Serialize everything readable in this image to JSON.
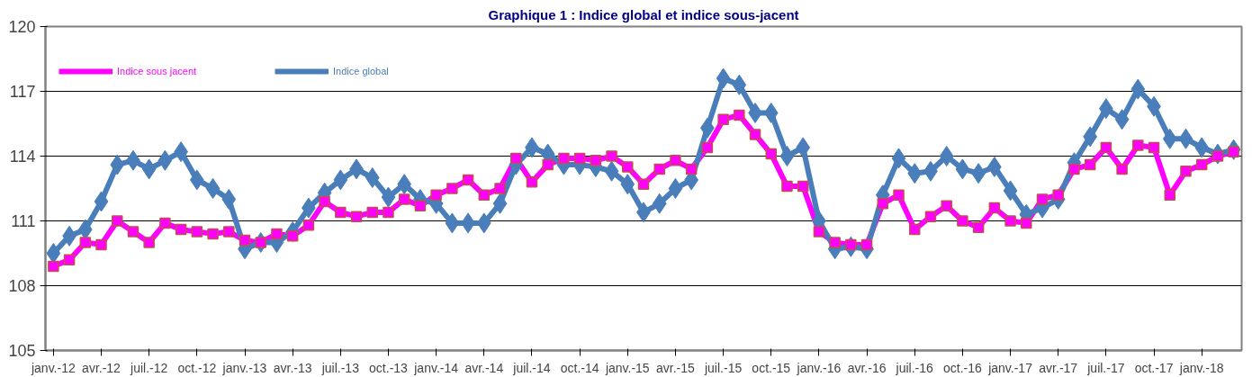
{
  "chart_data": {
    "type": "line",
    "title": "Graphique 1 : Indice global et indice sous-jacent",
    "categories": [
      "janv.-12",
      null,
      null,
      "avr.-12",
      null,
      null,
      "juil.-12",
      null,
      null,
      "oct.-12",
      null,
      null,
      "janv.-13",
      null,
      null,
      "avr.-13",
      null,
      null,
      "juil.-13",
      null,
      null,
      "oct.-13",
      null,
      null,
      "janv.-14",
      null,
      null,
      "avr.-14",
      null,
      null,
      "juil.-14",
      null,
      null,
      "oct.-14",
      null,
      null,
      "janv.-15",
      null,
      null,
      "avr.-15",
      null,
      null,
      "juil.-15",
      null,
      null,
      "oct.-15",
      null,
      null,
      "janv.-16",
      null,
      null,
      "avr.-16",
      null,
      null,
      "juil.-16",
      null,
      null,
      "oct.-16",
      null,
      null,
      "janv.-17",
      null,
      null,
      "avr.-17",
      null,
      null,
      "juil.-17",
      null,
      null,
      "oct.-17",
      null,
      null,
      "janv.-18",
      null,
      null
    ],
    "series": [
      {
        "name": "Indice sous jacent",
        "color": "#ff00ff",
        "marker": "square",
        "values": [
          108.9,
          109.2,
          110.0,
          109.9,
          111.0,
          110.5,
          110.0,
          110.9,
          110.6,
          110.5,
          110.4,
          110.5,
          110.1,
          110.0,
          110.4,
          110.3,
          110.8,
          111.9,
          111.4,
          111.2,
          111.4,
          111.4,
          112.0,
          111.7,
          112.2,
          112.5,
          112.9,
          112.2,
          112.5,
          113.9,
          112.8,
          113.6,
          113.9,
          113.9,
          113.8,
          114.0,
          113.5,
          112.7,
          113.4,
          113.8,
          113.4,
          114.4,
          115.7,
          115.9,
          115.0,
          114.1,
          112.6,
          112.6,
          110.5,
          110.0,
          109.9,
          109.9,
          111.8,
          112.2,
          110.6,
          111.2,
          111.7,
          111.0,
          110.7,
          111.6,
          111.0,
          110.9,
          112.0,
          112.2,
          113.4,
          113.6,
          114.4,
          113.4,
          114.5,
          114.4,
          112.2,
          113.3,
          113.6,
          114.0,
          114.2
        ]
      },
      {
        "name": "Indice global",
        "color": "#4a7ebb",
        "marker": "diamond",
        "values": [
          109.5,
          110.3,
          110.6,
          111.9,
          113.6,
          113.8,
          113.4,
          113.8,
          114.2,
          112.9,
          112.5,
          112.0,
          109.7,
          110.0,
          110.0,
          110.5,
          111.6,
          112.3,
          112.9,
          113.4,
          113.0,
          112.1,
          112.7,
          112.0,
          111.8,
          110.9,
          110.9,
          110.9,
          111.8,
          113.6,
          114.4,
          114.1,
          113.6,
          113.6,
          113.5,
          113.3,
          112.7,
          111.4,
          111.8,
          112.5,
          112.9,
          115.3,
          117.6,
          117.3,
          116.0,
          116.0,
          114.0,
          114.4,
          111.0,
          109.7,
          109.8,
          109.7,
          112.2,
          113.9,
          113.2,
          113.3,
          114.0,
          113.4,
          113.2,
          113.5,
          112.4,
          111.3,
          111.6,
          112.0,
          113.7,
          114.9,
          116.2,
          115.7,
          117.1,
          116.3,
          114.8,
          114.8,
          114.4,
          114.1,
          114.3
        ]
      }
    ],
    "ylim": [
      105,
      120
    ],
    "yticks": [
      105,
      108,
      111,
      114,
      117,
      120
    ],
    "grid": "y",
    "legend": "top left",
    "line_style": "solid"
  }
}
